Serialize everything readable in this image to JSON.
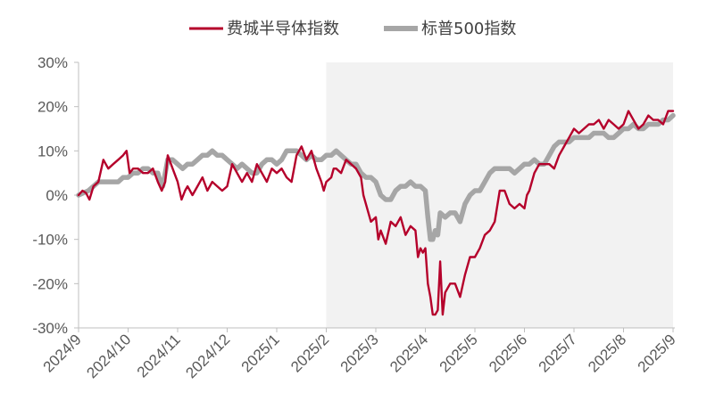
{
  "chart_data": {
    "type": "line",
    "x_ticks": [
      "2024/9",
      "2024/10",
      "2024/11",
      "2024/12",
      "2025/1",
      "2025/2",
      "2025/3",
      "2025/4",
      "2025/5",
      "2025/6",
      "2025/7",
      "2025/8",
      "2025/9"
    ],
    "y_ticks": [
      "30%",
      "20%",
      "10%",
      "0%",
      "-10%",
      "-20%",
      "-30%"
    ],
    "ylim": [
      -30,
      30
    ],
    "shaded_region": {
      "from": "2025/2",
      "to": "2025/9"
    },
    "legend_position": "top",
    "series": [
      {
        "name": "费城半导体指数",
        "color": "#b5002b",
        "points": [
          [
            0,
            0
          ],
          [
            0.08,
            1
          ],
          [
            0.15,
            0.5
          ],
          [
            0.22,
            -1
          ],
          [
            0.3,
            2
          ],
          [
            0.4,
            3
          ],
          [
            0.5,
            8
          ],
          [
            0.6,
            6
          ],
          [
            0.7,
            7
          ],
          [
            0.8,
            8
          ],
          [
            0.9,
            9
          ],
          [
            0.97,
            10
          ],
          [
            1.03,
            5
          ],
          [
            1.1,
            6
          ],
          [
            1.2,
            6
          ],
          [
            1.3,
            5
          ],
          [
            1.4,
            5
          ],
          [
            1.5,
            6
          ],
          [
            1.6,
            3
          ],
          [
            1.68,
            1
          ],
          [
            1.75,
            3
          ],
          [
            1.8,
            9
          ],
          [
            1.9,
            6
          ],
          [
            2.0,
            3
          ],
          [
            2.08,
            -1
          ],
          [
            2.15,
            1
          ],
          [
            2.2,
            2
          ],
          [
            2.3,
            0
          ],
          [
            2.4,
            2
          ],
          [
            2.5,
            4
          ],
          [
            2.6,
            1
          ],
          [
            2.7,
            3
          ],
          [
            2.8,
            2
          ],
          [
            2.9,
            1
          ],
          [
            3.0,
            2
          ],
          [
            3.1,
            7
          ],
          [
            3.2,
            5
          ],
          [
            3.3,
            3
          ],
          [
            3.4,
            5
          ],
          [
            3.5,
            3
          ],
          [
            3.6,
            7
          ],
          [
            3.7,
            5
          ],
          [
            3.8,
            3
          ],
          [
            3.9,
            6
          ],
          [
            4.0,
            5
          ],
          [
            4.1,
            6
          ],
          [
            4.2,
            4
          ],
          [
            4.3,
            3
          ],
          [
            4.4,
            9
          ],
          [
            4.5,
            11
          ],
          [
            4.6,
            8
          ],
          [
            4.7,
            10
          ],
          [
            4.8,
            6
          ],
          [
            4.9,
            3
          ],
          [
            4.95,
            1
          ],
          [
            5.0,
            3
          ],
          [
            5.1,
            4
          ],
          [
            5.15,
            6
          ],
          [
            5.2,
            6
          ],
          [
            5.3,
            5
          ],
          [
            5.4,
            8
          ],
          [
            5.5,
            7
          ],
          [
            5.6,
            6
          ],
          [
            5.7,
            4
          ],
          [
            5.75,
            0
          ],
          [
            5.8,
            -2
          ],
          [
            5.9,
            -6
          ],
          [
            6.0,
            -5
          ],
          [
            6.05,
            -10
          ],
          [
            6.1,
            -8
          ],
          [
            6.2,
            -11
          ],
          [
            6.3,
            -6
          ],
          [
            6.4,
            -7
          ],
          [
            6.5,
            -5
          ],
          [
            6.6,
            -9
          ],
          [
            6.7,
            -7
          ],
          [
            6.8,
            -8
          ],
          [
            6.85,
            -14
          ],
          [
            6.9,
            -12
          ],
          [
            6.95,
            -13
          ],
          [
            7.0,
            -12
          ],
          [
            7.05,
            -20
          ],
          [
            7.1,
            -23
          ],
          [
            7.15,
            -27
          ],
          [
            7.2,
            -27
          ],
          [
            7.25,
            -26
          ],
          [
            7.3,
            -15
          ],
          [
            7.35,
            -27
          ],
          [
            7.4,
            -22
          ],
          [
            7.5,
            -20
          ],
          [
            7.6,
            -20
          ],
          [
            7.7,
            -23
          ],
          [
            7.8,
            -18
          ],
          [
            7.9,
            -14
          ],
          [
            8.0,
            -14
          ],
          [
            8.1,
            -12
          ],
          [
            8.2,
            -9
          ],
          [
            8.3,
            -8
          ],
          [
            8.4,
            -6
          ],
          [
            8.5,
            1
          ],
          [
            8.6,
            1
          ],
          [
            8.7,
            -2
          ],
          [
            8.8,
            -3
          ],
          [
            8.9,
            -2
          ],
          [
            9.0,
            -3
          ],
          [
            9.05,
            0
          ],
          [
            9.1,
            1
          ],
          [
            9.2,
            5
          ],
          [
            9.3,
            7
          ],
          [
            9.4,
            7
          ],
          [
            9.5,
            7
          ],
          [
            9.6,
            6
          ],
          [
            9.7,
            9
          ],
          [
            9.8,
            11
          ],
          [
            9.9,
            13
          ],
          [
            10.0,
            15
          ],
          [
            10.1,
            14
          ],
          [
            10.2,
            15
          ],
          [
            10.3,
            16
          ],
          [
            10.4,
            16
          ],
          [
            10.5,
            17
          ],
          [
            10.6,
            15
          ],
          [
            10.7,
            17
          ],
          [
            10.8,
            16
          ],
          [
            10.9,
            15
          ],
          [
            11.0,
            16
          ],
          [
            11.1,
            19
          ],
          [
            11.2,
            17
          ],
          [
            11.3,
            15
          ],
          [
            11.4,
            16
          ],
          [
            11.5,
            18
          ],
          [
            11.6,
            17
          ],
          [
            11.7,
            17
          ],
          [
            11.8,
            16
          ],
          [
            11.9,
            19
          ],
          [
            12.0,
            19
          ]
        ]
      },
      {
        "name": "标普500指数",
        "color": "#a6a6a6",
        "points": [
          [
            0,
            0
          ],
          [
            0.1,
            0.5
          ],
          [
            0.2,
            1
          ],
          [
            0.3,
            2
          ],
          [
            0.4,
            3
          ],
          [
            0.5,
            3
          ],
          [
            0.6,
            3
          ],
          [
            0.7,
            3
          ],
          [
            0.8,
            3
          ],
          [
            0.9,
            4
          ],
          [
            1.0,
            4
          ],
          [
            1.1,
            5
          ],
          [
            1.2,
            5
          ],
          [
            1.3,
            6
          ],
          [
            1.4,
            6
          ],
          [
            1.5,
            5
          ],
          [
            1.6,
            5
          ],
          [
            1.65,
            3
          ],
          [
            1.7,
            2
          ],
          [
            1.8,
            8
          ],
          [
            1.9,
            8
          ],
          [
            2.0,
            7
          ],
          [
            2.1,
            6
          ],
          [
            2.2,
            7
          ],
          [
            2.3,
            7
          ],
          [
            2.4,
            8
          ],
          [
            2.5,
            9
          ],
          [
            2.6,
            9
          ],
          [
            2.7,
            10
          ],
          [
            2.8,
            9
          ],
          [
            2.9,
            9
          ],
          [
            3.0,
            8
          ],
          [
            3.1,
            7
          ],
          [
            3.2,
            6
          ],
          [
            3.3,
            7
          ],
          [
            3.4,
            6
          ],
          [
            3.5,
            5
          ],
          [
            3.6,
            5
          ],
          [
            3.7,
            7
          ],
          [
            3.8,
            8
          ],
          [
            3.9,
            8
          ],
          [
            4.0,
            7
          ],
          [
            4.1,
            8
          ],
          [
            4.2,
            10
          ],
          [
            4.3,
            10
          ],
          [
            4.4,
            10
          ],
          [
            4.5,
            9
          ],
          [
            4.6,
            8
          ],
          [
            4.7,
            9
          ],
          [
            4.8,
            8
          ],
          [
            4.9,
            8
          ],
          [
            5.0,
            9
          ],
          [
            5.1,
            9
          ],
          [
            5.2,
            10
          ],
          [
            5.3,
            9
          ],
          [
            5.4,
            8
          ],
          [
            5.5,
            7
          ],
          [
            5.6,
            7
          ],
          [
            5.7,
            5
          ],
          [
            5.8,
            4
          ],
          [
            5.9,
            4
          ],
          [
            6.0,
            3
          ],
          [
            6.1,
            0
          ],
          [
            6.2,
            -1
          ],
          [
            6.3,
            -1
          ],
          [
            6.4,
            1
          ],
          [
            6.5,
            2
          ],
          [
            6.6,
            2
          ],
          [
            6.7,
            3
          ],
          [
            6.8,
            2
          ],
          [
            6.9,
            2
          ],
          [
            7.0,
            1
          ],
          [
            7.05,
            -5
          ],
          [
            7.1,
            -10
          ],
          [
            7.15,
            -10
          ],
          [
            7.2,
            -8
          ],
          [
            7.25,
            -9
          ],
          [
            7.3,
            -4
          ],
          [
            7.4,
            -5
          ],
          [
            7.5,
            -4
          ],
          [
            7.6,
            -4
          ],
          [
            7.7,
            -6
          ],
          [
            7.8,
            -2
          ],
          [
            7.9,
            0
          ],
          [
            8.0,
            1
          ],
          [
            8.1,
            1
          ],
          [
            8.2,
            3
          ],
          [
            8.3,
            5
          ],
          [
            8.4,
            6
          ],
          [
            8.5,
            6
          ],
          [
            8.6,
            6
          ],
          [
            8.7,
            6
          ],
          [
            8.8,
            5
          ],
          [
            8.9,
            6
          ],
          [
            9.0,
            7
          ],
          [
            9.1,
            7
          ],
          [
            9.2,
            8
          ],
          [
            9.3,
            7
          ],
          [
            9.4,
            7
          ],
          [
            9.5,
            9
          ],
          [
            9.6,
            11
          ],
          [
            9.7,
            12
          ],
          [
            9.8,
            12
          ],
          [
            9.9,
            12
          ],
          [
            10.0,
            13
          ],
          [
            10.1,
            13
          ],
          [
            10.2,
            13
          ],
          [
            10.3,
            13
          ],
          [
            10.4,
            14
          ],
          [
            10.5,
            14
          ],
          [
            10.6,
            14
          ],
          [
            10.7,
            13
          ],
          [
            10.8,
            13
          ],
          [
            10.9,
            14
          ],
          [
            11.0,
            15
          ],
          [
            11.1,
            15
          ],
          [
            11.2,
            16
          ],
          [
            11.3,
            15
          ],
          [
            11.4,
            15
          ],
          [
            11.5,
            16
          ],
          [
            11.6,
            16
          ],
          [
            11.7,
            16
          ],
          [
            11.8,
            17
          ],
          [
            11.9,
            17
          ],
          [
            12.0,
            18
          ]
        ]
      }
    ]
  }
}
